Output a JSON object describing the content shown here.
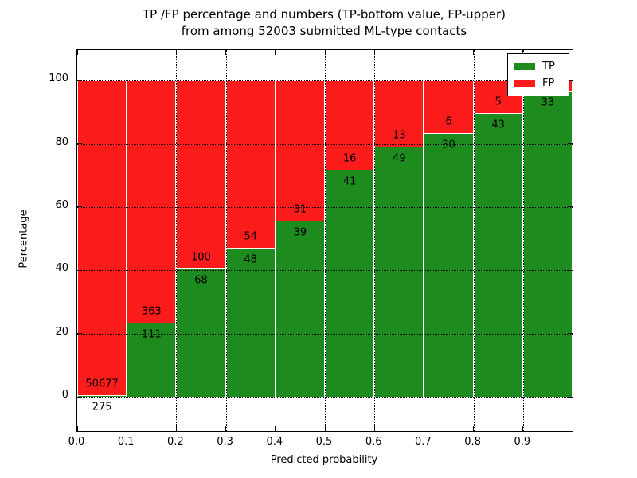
{
  "chart_data": {
    "type": "bar",
    "stacked": true,
    "percentage_scale": true,
    "title_line1": "TP /FP percentage and numbers (TP-bottom value, FP-upper)",
    "title_line2": "from among 52003 submitted ML-type contacts",
    "xlabel": "Predicted probability",
    "ylabel": "Percentage",
    "xlim": [
      0.0,
      1.0
    ],
    "ylim": [
      -10.8,
      109.6
    ],
    "x_ticks": [
      "0.0",
      "0.1",
      "0.2",
      "0.3",
      "0.4",
      "0.5",
      "0.6",
      "0.7",
      "0.8",
      "0.9"
    ],
    "x_tick_values": [
      0.0,
      0.1,
      0.2,
      0.3,
      0.4,
      0.5,
      0.6,
      0.7,
      0.8,
      0.9,
      1.0
    ],
    "y_ticks": [
      0,
      20,
      40,
      60,
      80,
      100
    ],
    "grid": true,
    "legend_position": "upper right",
    "legend": [
      {
        "label": "TP",
        "color": "#1e8b1e"
      },
      {
        "label": "FP",
        "color": "#fc1c1c"
      }
    ],
    "colors": {
      "tp": "#1e8b1e",
      "fp": "#fc1c1c",
      "bar_edge": "#ffffff"
    },
    "bins": [
      {
        "x0": 0.0,
        "x1": 0.1,
        "tp_count": "275",
        "fp_count": "50677",
        "tp_pct": 0.54
      },
      {
        "x0": 0.1,
        "x1": 0.2,
        "tp_count": "111",
        "fp_count": "363",
        "tp_pct": 23.42
      },
      {
        "x0": 0.2,
        "x1": 0.3,
        "tp_count": "68",
        "fp_count": "100",
        "tp_pct": 40.48
      },
      {
        "x0": 0.3,
        "x1": 0.4,
        "tp_count": "48",
        "fp_count": "54",
        "tp_pct": 47.06
      },
      {
        "x0": 0.4,
        "x1": 0.5,
        "tp_count": "39",
        "fp_count": "31",
        "tp_pct": 55.71
      },
      {
        "x0": 0.5,
        "x1": 0.6,
        "tp_count": "41",
        "fp_count": "16",
        "tp_pct": 71.93
      },
      {
        "x0": 0.6,
        "x1": 0.7,
        "tp_count": "49",
        "fp_count": "13",
        "tp_pct": 79.03
      },
      {
        "x0": 0.7,
        "x1": 0.8,
        "tp_count": "30",
        "fp_count": "6",
        "tp_pct": 83.33
      },
      {
        "x0": 0.8,
        "x1": 0.9,
        "tp_count": "43",
        "fp_count": "5",
        "tp_pct": 89.58
      },
      {
        "x0": 0.9,
        "x1": 1.0,
        "tp_count": "33",
        "fp_count": null,
        "tp_pct": 96.7
      }
    ]
  }
}
